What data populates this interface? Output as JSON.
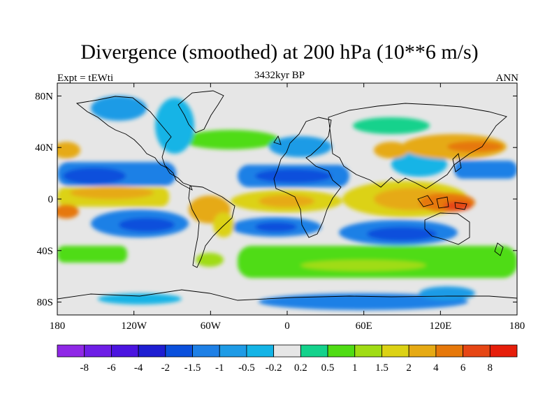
{
  "title": "Divergence (smoothed) at 200 hPa (10**6 m/s)",
  "subtitle_left": "Expt = tEWti",
  "subtitle_center": "3432kyr BP",
  "subtitle_right": "ANN",
  "map": {
    "projection": "cylindrical-equidistant",
    "lon_range": [
      -180,
      180
    ],
    "lat_range": [
      -90,
      90
    ],
    "x_ticks": [
      {
        "lon": -180,
        "label": "180"
      },
      {
        "lon": -120,
        "label": "120W"
      },
      {
        "lon": -60,
        "label": "60W"
      },
      {
        "lon": 0,
        "label": "0"
      },
      {
        "lon": 60,
        "label": "60E"
      },
      {
        "lon": 120,
        "label": "120E"
      },
      {
        "lon": 180,
        "label": "180"
      }
    ],
    "y_ticks": [
      {
        "lat": 80,
        "label": "80N"
      },
      {
        "lat": 40,
        "label": "40N"
      },
      {
        "lat": 0,
        "label": "0"
      },
      {
        "lat": -40,
        "label": "40S"
      },
      {
        "lat": -80,
        "label": "80S"
      }
    ],
    "background_color": "#e6e6e6"
  },
  "colorbar": {
    "colors": [
      "#8f28e6",
      "#6e1ee6",
      "#4b14e0",
      "#1e1ed2",
      "#0a50dc",
      "#1e80e6",
      "#1e9be6",
      "#14b4e6",
      "#e6e6e6",
      "#14d28c",
      "#50dc14",
      "#a0dc14",
      "#dcd214",
      "#e6aa14",
      "#e6780a",
      "#e64614",
      "#e61e0a"
    ],
    "labels": [
      "-8",
      "-6",
      "-4",
      "-2",
      "-1.5",
      "-1",
      "-0.5",
      "-0.2",
      "0.2",
      "0.5",
      "1",
      "1.5",
      "2",
      "4",
      "6",
      "8"
    ]
  }
}
